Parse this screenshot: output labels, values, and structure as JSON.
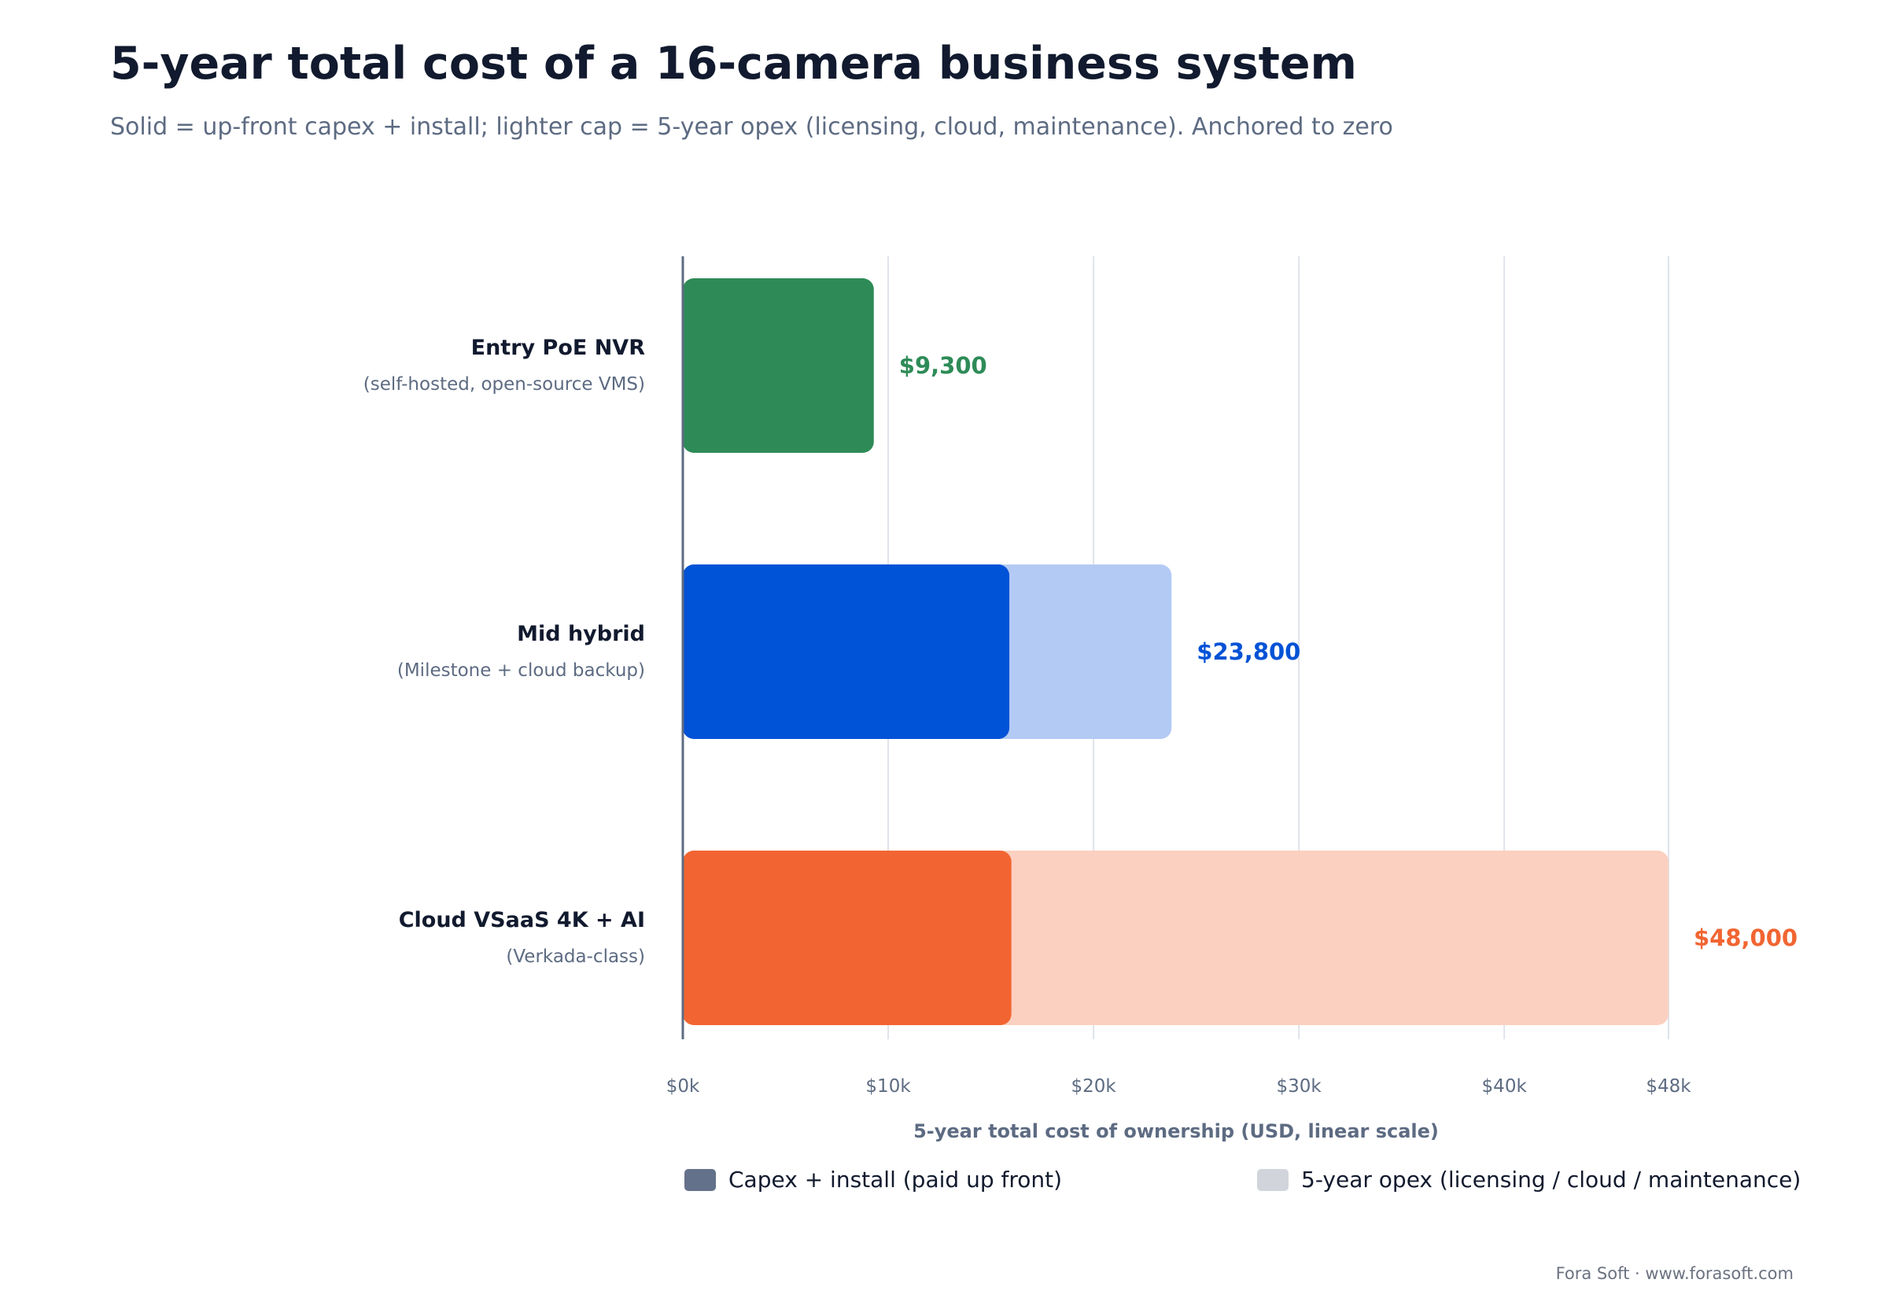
{
  "title": "5-year total cost of a 16-camera business system",
  "subtitle": "Solid = up-front capex + install; lighter cap = 5-year opex (licensing, cloud, maintenance). Anchored to zero",
  "footer": "Fora Soft · www.forasoft.com",
  "chart_data": {
    "type": "bar",
    "orientation": "horizontal",
    "stacked": true,
    "categories": [
      {
        "name": "Entry PoE NVR",
        "sub": "(self-hosted, open-source VMS)"
      },
      {
        "name": "Mid hybrid",
        "sub": "(Milestone + cloud backup)"
      },
      {
        "name": "Cloud VSaaS 4K + AI",
        "sub": "(Verkada-class)"
      }
    ],
    "series": [
      {
        "name": "Capex + install (paid up front)",
        "values": [
          9300,
          15900,
          16000
        ]
      },
      {
        "name": "5-year opex (licensing / cloud / maintenance)",
        "values": [
          0,
          7900,
          32000
        ]
      }
    ],
    "totals": [
      9300,
      23800,
      48000
    ],
    "total_labels": [
      "$9,300",
      "$23,800",
      "$48,000"
    ],
    "colors": {
      "solid": [
        "#2e8b57",
        "#0052d6",
        "#f26532"
      ],
      "light": [
        "#a9d6bc",
        "#b3caf4",
        "#fbd0c0"
      ],
      "legend_capex": "#64718a",
      "legend_opex": "#d1d5db"
    },
    "xlabel": "5-year total cost of ownership (USD, linear scale)",
    "xlim": [
      0,
      48000
    ],
    "xticks": [
      0,
      10000,
      20000,
      30000,
      40000,
      48000
    ],
    "xtick_labels": [
      "$0k",
      "$10k",
      "$20k",
      "$30k",
      "$40k",
      "$48k"
    ],
    "grid": true,
    "legend_position": "bottom"
  }
}
